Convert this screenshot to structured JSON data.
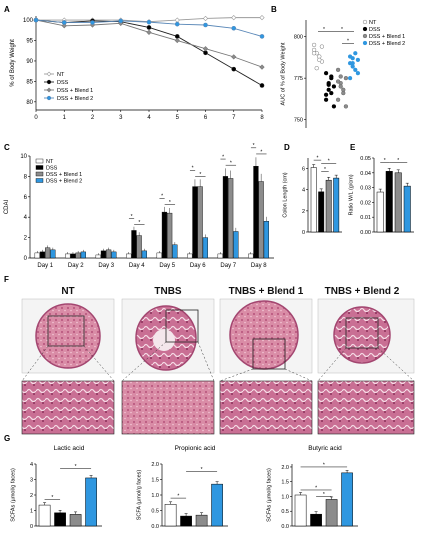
{
  "panels": {
    "A": "A",
    "B": "B",
    "C": "C",
    "D": "D",
    "E": "E",
    "F": "F",
    "G": "G"
  },
  "colors": {
    "nt": "#ffffff",
    "dss": "#000000",
    "blend1": "#8c8c8c",
    "blend2": "#2f97e0",
    "line_nt": "#9a9a9a",
    "line_dss": "#222222",
    "line_b1": "#777777",
    "line_b2": "#5a88b8"
  },
  "chart_data": [
    {
      "id": "A",
      "type": "line",
      "ylabel": "% of Body Weight",
      "x": [
        0,
        1,
        2,
        3,
        4,
        5,
        6,
        7,
        8
      ],
      "xticks": [
        "0",
        "1",
        "2",
        "3",
        "4",
        "5",
        "6",
        "7",
        "8"
      ],
      "yticks": [
        "80",
        "85",
        "90",
        "95",
        "100"
      ],
      "ylim": [
        78,
        101
      ],
      "xlim": [
        0,
        8
      ],
      "series": [
        {
          "name": "NT",
          "values": [
            100,
            100,
            100,
            100,
            99.6,
            100,
            100.4,
            100.6,
            100.6
          ]
        },
        {
          "name": "DSS",
          "values": [
            100,
            99.4,
            99.8,
            99.6,
            98.2,
            96,
            92,
            88,
            84
          ]
        },
        {
          "name": "DSS + Blend 1",
          "values": [
            100,
            98.6,
            98.8,
            99.2,
            97,
            95,
            93,
            91,
            88.5
          ]
        },
        {
          "name": "DSS + Blend 2",
          "values": [
            100,
            99.4,
            99.4,
            99.8,
            99.5,
            99,
            98.8,
            98,
            96
          ]
        }
      ],
      "legend": "bottom-left"
    },
    {
      "id": "B",
      "type": "scatter",
      "ylabel": "AUC of % of Body Weight",
      "yticks": [
        "750",
        "775",
        "800"
      ],
      "ylim": [
        745,
        810
      ],
      "categories": [
        "NT",
        "DSS",
        "DSS + Blend 1",
        "DSS + Blend 2"
      ],
      "series": [
        {
          "name": "NT",
          "values": [
            795,
            790,
            788,
            785,
            792,
            781,
            786,
            794,
            790
          ]
        },
        {
          "name": "DSS",
          "values": [
            778,
            768,
            775,
            770,
            762,
            772,
            766,
            758,
            765,
            771,
            776
          ]
        },
        {
          "name": "DSS + Blend 1",
          "values": [
            780,
            772,
            768,
            775,
            762,
            770,
            766,
            758,
            773,
            776
          ]
        },
        {
          "name": "DSS + Blend 2",
          "values": [
            788,
            784,
            780,
            786,
            775,
            782,
            790,
            778,
            784,
            787
          ]
        }
      ],
      "annotations": [
        "*",
        "*",
        "*"
      ],
      "legend": "right"
    },
    {
      "id": "C",
      "type": "bar",
      "ylabel": "CDAI",
      "categories": [
        "Day 1",
        "Day 2",
        "Day 3",
        "Day 4",
        "Day 5",
        "Day 6",
        "Day 7",
        "Day 8"
      ],
      "yticks": [
        "0",
        "2",
        "4",
        "6",
        "8",
        "10"
      ],
      "ylim": [
        0,
        10
      ],
      "series": [
        {
          "name": "NT",
          "values": [
            0.5,
            0.4,
            0.3,
            0.4,
            0.5,
            0.4,
            0.4,
            0.4
          ]
        },
        {
          "name": "DSS",
          "values": [
            0.6,
            0.4,
            0.7,
            2.7,
            4.5,
            7,
            8,
            9
          ]
        },
        {
          "name": "DSS + Blend 1",
          "values": [
            1,
            0.5,
            0.8,
            2.2,
            4.4,
            7,
            7.8,
            7.5
          ]
        },
        {
          "name": "DSS + Blend 2",
          "values": [
            0.8,
            0.6,
            0.6,
            0.7,
            1.3,
            2,
            2.6,
            3.6
          ]
        }
      ],
      "annotations": [
        "*",
        "*",
        "*",
        "*",
        "*",
        "*",
        "*",
        "*",
        "*",
        "*"
      ],
      "legend": "top-left"
    },
    {
      "id": "D",
      "type": "bar",
      "ylabel": "Colon Length (cm)",
      "categories": [
        "NT",
        "DSS",
        "DSS + Blend 1",
        "DSS + Blend 2"
      ],
      "yticks": [
        "0",
        "2",
        "4",
        "6"
      ],
      "ylim": [
        0,
        7
      ],
      "values": [
        6.1,
        3.8,
        4.9,
        5.1
      ],
      "annotations": [
        "*",
        "*",
        "*"
      ]
    },
    {
      "id": "E",
      "type": "bar",
      "ylabel": "Ratio W/L (g/cm)",
      "categories": [
        "NT",
        "DSS",
        "DSS + Blend 1",
        "DSS + Blend 2"
      ],
      "yticks": [
        "0.00",
        "0.01",
        "0.02",
        "0.03",
        "0.04",
        "0.05"
      ],
      "ylim": [
        0,
        0.05
      ],
      "values": [
        0.027,
        0.041,
        0.04,
        0.031
      ],
      "annotations": [
        "*",
        "*"
      ]
    },
    {
      "id": "G1",
      "type": "bar",
      "title": "Lactic acid",
      "ylabel": "SCFAs (µmol/g faces)",
      "categories": [
        "NT",
        "DSS",
        "DSS + Blend 1",
        "DSS + Blend 2"
      ],
      "yticks": [
        "0",
        "1",
        "2",
        "3",
        "4"
      ],
      "ylim": [
        0,
        4
      ],
      "values": [
        1.35,
        0.85,
        0.75,
        3.1
      ],
      "annotations": [
        "*",
        "*"
      ]
    },
    {
      "id": "G2",
      "type": "bar",
      "title": "Propionic acid",
      "ylabel": "SCFA (µmol/g faces)",
      "categories": [
        "NT",
        "DSS",
        "DSS + Blend 1",
        "DSS + Blend 2"
      ],
      "yticks": [
        "0.0",
        "0.5",
        "1.0",
        "1.5",
        "2.0"
      ],
      "ylim": [
        0,
        2
      ],
      "values": [
        0.7,
        0.32,
        0.35,
        1.35
      ],
      "annotations": [
        "*",
        "*"
      ]
    },
    {
      "id": "G3",
      "type": "bar",
      "title": "Butyric acid",
      "ylabel": "SCFAs (µmol/g faces)",
      "categories": [
        "NT",
        "DSS",
        "DSS + Blend 1",
        "DSS + Blend 2"
      ],
      "yticks": [
        "0.0",
        "0.5",
        "1.0",
        "1.5",
        "2.0"
      ],
      "ylim": [
        0,
        2.1
      ],
      "values": [
        1.05,
        0.4,
        0.9,
        1.8
      ],
      "annotations": [
        "*",
        "*",
        "*"
      ]
    }
  ],
  "histology": {
    "titles": [
      "NT",
      "TNBS",
      "TNBS + Blend 1",
      "TNBS + Blend 2"
    ]
  }
}
